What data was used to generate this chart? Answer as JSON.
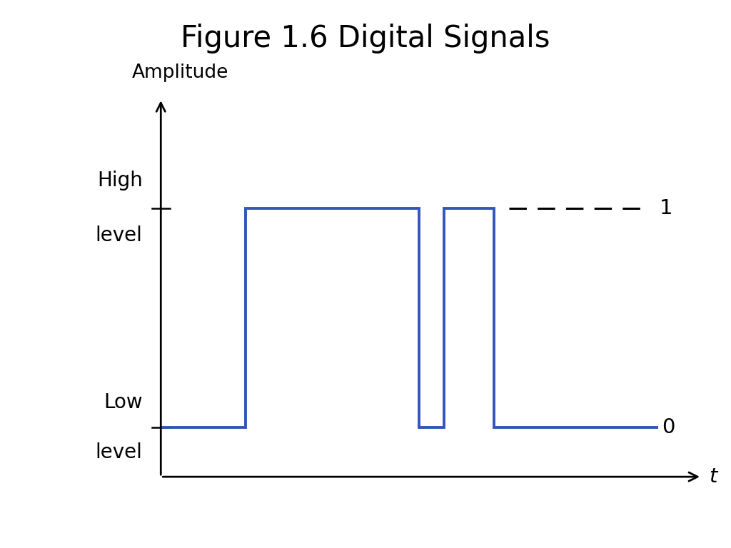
{
  "title": "Figure 1.6 Digital Signals",
  "title_fontsize": 30,
  "amplitude_label": "Amplitude",
  "t_label": "t",
  "label_0": "0",
  "label_1": "1",
  "signal_color": "#3355bb",
  "signal_linewidth": 2.8,
  "dashed_color": "#000000",
  "axis_color": "#000000",
  "background_color": "#ffffff",
  "fig_width": 10.24,
  "fig_height": 7.68,
  "dpi": 100
}
